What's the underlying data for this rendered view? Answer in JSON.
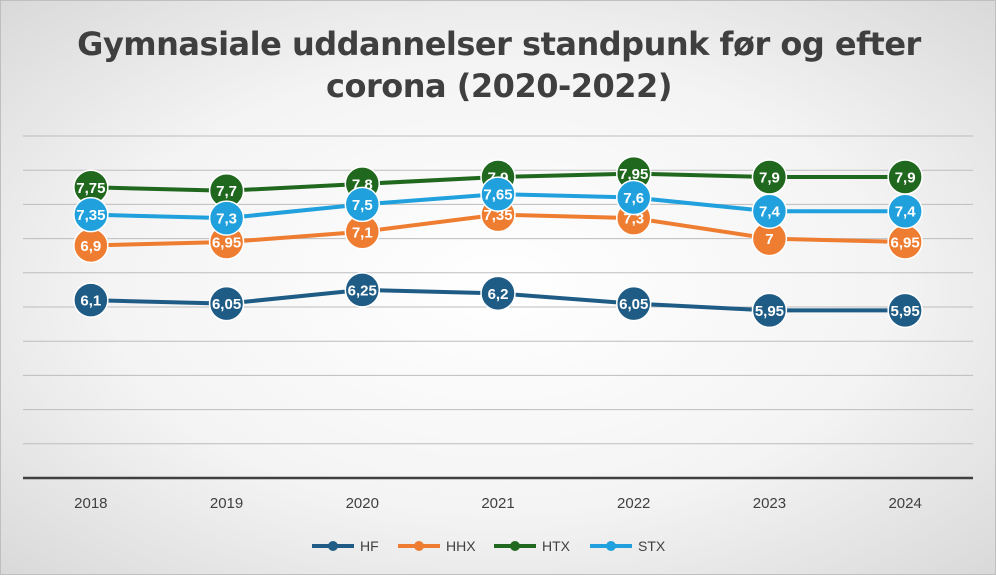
{
  "chart_data": {
    "type": "line",
    "title": "Gymnasiale uddannelser standpunk før og efter corona (2020-2022)",
    "title_lines": [
      "Gymnasiale uddannelser standpunk før og efter",
      "corona (2020-2022)"
    ],
    "categories": [
      "2018",
      "2019",
      "2020",
      "2021",
      "2022",
      "2023",
      "2024"
    ],
    "ylim": [
      3.5,
      8.5
    ],
    "grid": true,
    "legend_position": "bottom",
    "series": [
      {
        "name": "HF",
        "color": "#1f5c85",
        "values": [
          6.1,
          6.05,
          6.25,
          6.2,
          6.05,
          5.95,
          5.95
        ],
        "labels": [
          "6,1",
          "6,05",
          "6,25",
          "6,2",
          "6,05",
          "5,95",
          "5,95"
        ]
      },
      {
        "name": "HHX",
        "color": "#ee7d31",
        "values": [
          6.9,
          6.95,
          7.1,
          7.35,
          7.3,
          7,
          6.95
        ],
        "labels": [
          "6,9",
          "6,95",
          "7,1",
          "7,35",
          "7,3",
          "7",
          "6,95"
        ]
      },
      {
        "name": "HTX",
        "color": "#21681f",
        "values": [
          7.75,
          7.7,
          7.8,
          7.9,
          7.95,
          7.9,
          7.9
        ],
        "labels": [
          "7,75",
          "7,7",
          "7,8",
          "7,9",
          "7,95",
          "7,9",
          "7,9"
        ]
      },
      {
        "name": "STX",
        "color": "#20a0dc",
        "values": [
          7.35,
          7.3,
          7.5,
          7.65,
          7.6,
          7.4,
          7.4
        ],
        "labels": [
          "7,35",
          "7,3",
          "7,5",
          "7,65",
          "7,6",
          "7,4",
          "7,4"
        ]
      }
    ]
  }
}
